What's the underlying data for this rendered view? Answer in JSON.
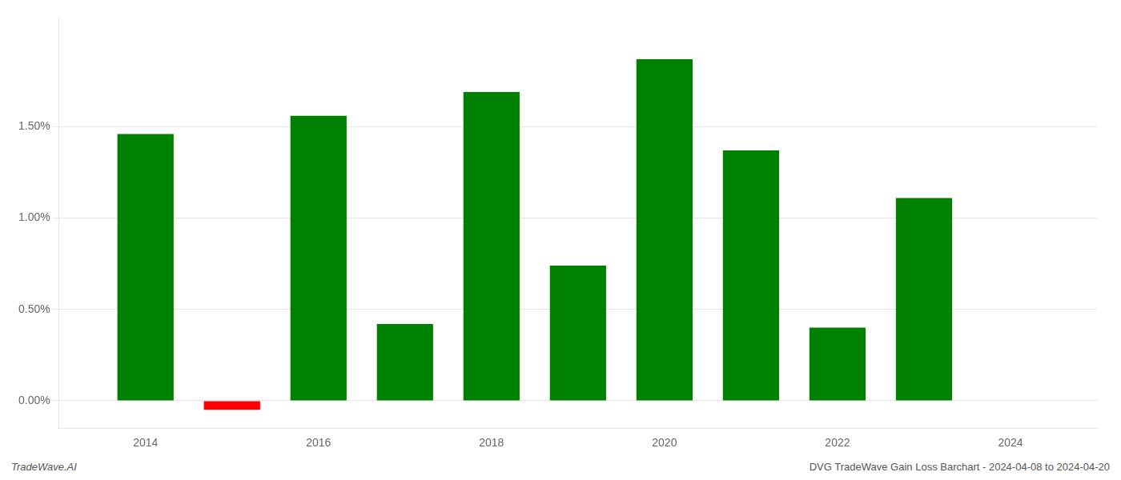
{
  "chart_data": {
    "type": "bar",
    "x": [
      2014,
      2015,
      2016,
      2017,
      2018,
      2019,
      2020,
      2021,
      2022,
      2023
    ],
    "values": [
      0.0146,
      -0.0005,
      0.0156,
      0.0042,
      0.0169,
      0.0074,
      0.0187,
      0.0137,
      0.004,
      0.0111
    ],
    "colors": [
      "#008000",
      "#ff0000",
      "#008000",
      "#008000",
      "#008000",
      "#008000",
      "#008000",
      "#008000",
      "#008000",
      "#008000"
    ],
    "xlim": [
      2013.0,
      2025.0
    ],
    "xticks": [
      2014,
      2016,
      2018,
      2020,
      2022,
      2024
    ],
    "ylim": [
      -0.0015,
      0.021
    ],
    "yticks": [
      {
        "value": 0.0,
        "label": "0.00%"
      },
      {
        "value": 0.005,
        "label": "0.50%"
      },
      {
        "value": 0.01,
        "label": "1.00%"
      },
      {
        "value": 0.015,
        "label": "1.50%"
      }
    ],
    "grid": true,
    "annotations": [
      "TradeWave.AI",
      "DVG TradeWave Gain Loss Barchart - 2024-04-08 to 2024-04-20"
    ]
  }
}
